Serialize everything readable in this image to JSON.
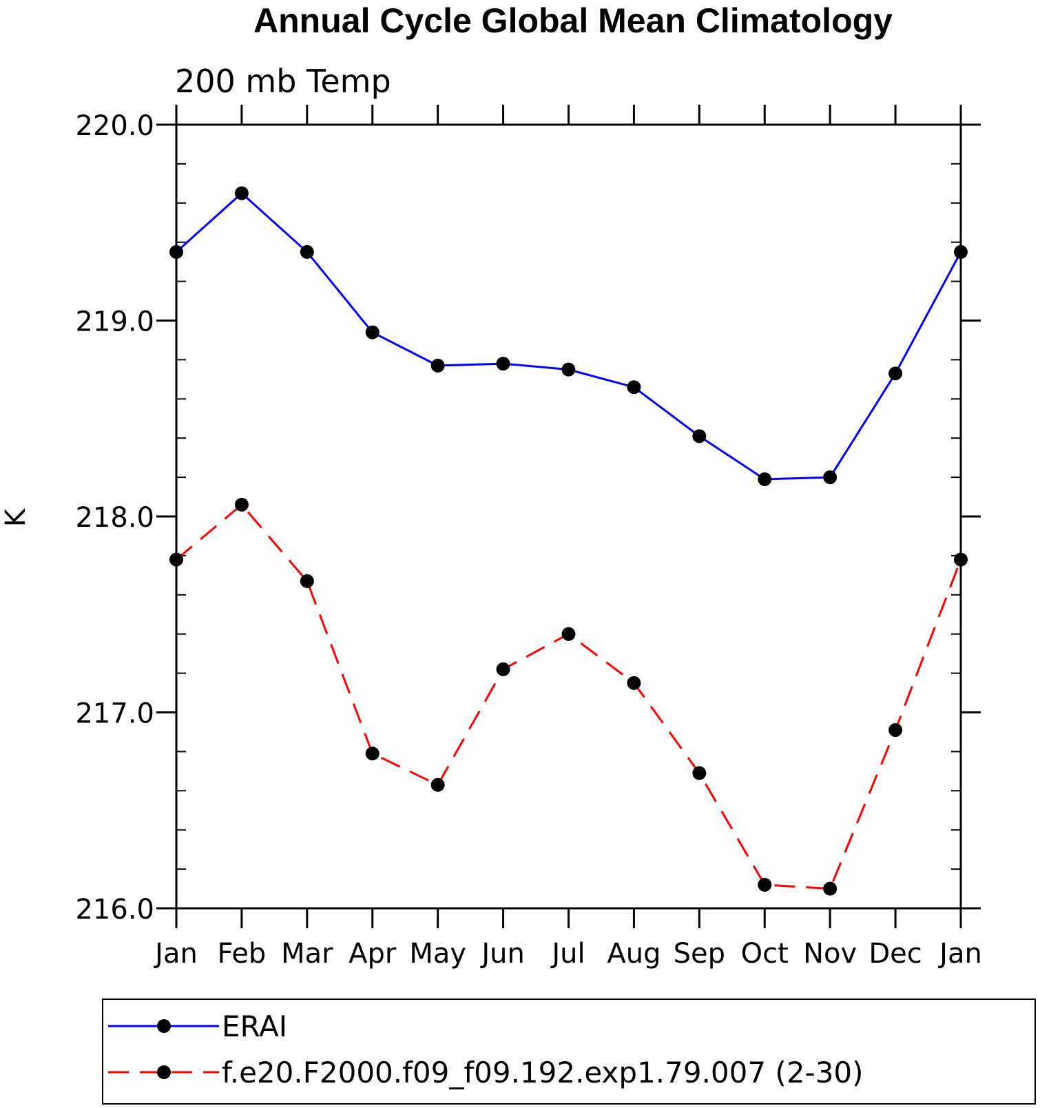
{
  "chart_data": {
    "type": "line",
    "title": "Annual Cycle Global Mean Climatology",
    "subtitle": "200 mb Temp",
    "xlabel": "",
    "ylabel": "K",
    "categories": [
      "Jan",
      "Feb",
      "Mar",
      "Apr",
      "May",
      "Jun",
      "Jul",
      "Aug",
      "Sep",
      "Oct",
      "Nov",
      "Dec",
      "Jan"
    ],
    "ylim": [
      216.0,
      220.0
    ],
    "yticks": [
      "216.0",
      "217.0",
      "218.0",
      "219.0",
      "220.0"
    ],
    "grid": false,
    "legend_position": "bottom",
    "series": [
      {
        "name": "ERAI",
        "color": "#0000ff",
        "dash": "solid",
        "marker": "filled-circle",
        "values": [
          219.35,
          219.65,
          219.35,
          218.94,
          218.77,
          218.78,
          218.75,
          218.66,
          218.41,
          218.19,
          218.2,
          218.73,
          219.35
        ]
      },
      {
        "name": "f.e20.F2000.f09_f09.192.exp1.79.007 (2-30)",
        "color": "#ff0000",
        "dash": "dashed",
        "marker": "filled-circle",
        "values": [
          217.78,
          218.06,
          217.67,
          216.79,
          216.63,
          217.22,
          217.4,
          217.15,
          216.69,
          216.12,
          216.1,
          216.91,
          217.78
        ]
      }
    ]
  }
}
